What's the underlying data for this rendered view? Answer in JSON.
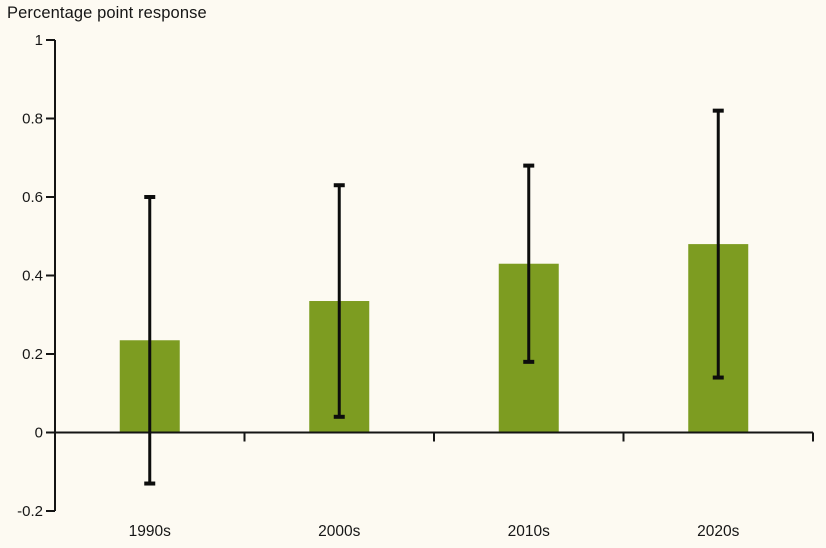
{
  "title": "Percentage point response",
  "colors": {
    "background": "#fdfaf2",
    "bar": "#7d9c21",
    "axis": "#141414",
    "error_bar": "#0d0d0d",
    "text": "#161616"
  },
  "chart_data": {
    "type": "bar",
    "title": "Percentage point response",
    "categories": [
      "1990s",
      "2000s",
      "2010s",
      "2020s"
    ],
    "values": [
      0.235,
      0.335,
      0.43,
      0.48
    ],
    "error_bars": {
      "low": [
        -0.13,
        0.04,
        0.18,
        0.14
      ],
      "high": [
        0.6,
        0.63,
        0.68,
        0.82
      ]
    },
    "xlabel": "",
    "ylabel": "Percentage point response",
    "ylim": [
      -0.2,
      1
    ],
    "yticks": [
      -0.2,
      0,
      0.2,
      0.4,
      0.6,
      0.8,
      1
    ],
    "ytick_labels": [
      "-0.2",
      "0",
      "0.2",
      "0.4",
      "0.6",
      "0.8",
      "1"
    ],
    "grid": false,
    "legend": "none",
    "error_bar_style": "black line with flat caps, drawn over bars, centered on each bar"
  }
}
